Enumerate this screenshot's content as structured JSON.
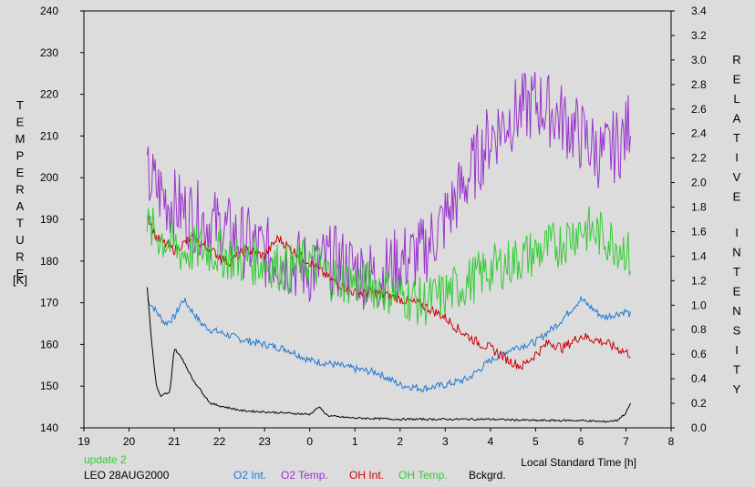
{
  "chart_data": {
    "type": "line",
    "xlabel": "Local Standard Time [h]",
    "ylabel_left": "TEMPERATURE",
    "ylabel_left_unit": "[K]",
    "ylabel_right": "RELATIVE INTENSITY",
    "x_tick_labels": [
      "19",
      "20",
      "21",
      "22",
      "23",
      "0",
      "1",
      "2",
      "3",
      "4",
      "5",
      "6",
      "7",
      "8"
    ],
    "xlim": [
      19,
      32
    ],
    "ylim_left": [
      140,
      240
    ],
    "ylim_right": [
      0.0,
      3.4
    ],
    "left_tick_labels": [
      "140",
      "150",
      "160",
      "170",
      "180",
      "190",
      "200",
      "210",
      "220",
      "230",
      "240"
    ],
    "right_tick_labels": [
      "0.0",
      "0.2",
      "0.4",
      "0.6",
      "0.8",
      "1.0",
      "1.2",
      "1.4",
      "1.6",
      "1.8",
      "2.0",
      "2.2",
      "2.4",
      "2.6",
      "2.8",
      "3.0",
      "3.2",
      "3.4"
    ],
    "grid": false,
    "legend_position": "bottom",
    "annotations": {
      "update": "update 2",
      "station": "LEO 28AUG2000"
    },
    "series": [
      {
        "name": "O2 Int.",
        "axis": "right",
        "color": "#1f78d4",
        "x": [
          20.4,
          20.6,
          20.8,
          21.0,
          21.2,
          21.4,
          21.6,
          21.8,
          22.0,
          22.5,
          23.0,
          23.5,
          24.0,
          24.5,
          25.0,
          25.5,
          26.0,
          26.5,
          27.0,
          27.5,
          28.0,
          28.5,
          29.0,
          29.5,
          30.0,
          30.5,
          31.0,
          31.1
        ],
        "y": [
          1.05,
          0.95,
          0.85,
          0.9,
          1.05,
          0.95,
          0.85,
          0.8,
          0.78,
          0.72,
          0.68,
          0.64,
          0.55,
          0.52,
          0.48,
          0.45,
          0.35,
          0.32,
          0.35,
          0.4,
          0.55,
          0.65,
          0.7,
          0.85,
          1.05,
          0.9,
          0.95,
          0.92
        ],
        "noise": 0.03
      },
      {
        "name": "O2 Temp.",
        "axis": "left",
        "color": "#9933cc",
        "x": [
          20.4,
          20.8,
          21.2,
          21.6,
          22.0,
          22.5,
          23.0,
          23.5,
          24.0,
          24.5,
          25.0,
          25.5,
          26.0,
          26.5,
          27.0,
          27.5,
          28.0,
          28.5,
          29.0,
          29.5,
          30.0,
          30.5,
          31.0,
          31.1
        ],
        "y": [
          200,
          195,
          192,
          190,
          188,
          185,
          182,
          180,
          178,
          180,
          178,
          176,
          180,
          182,
          190,
          200,
          210,
          215,
          218,
          215,
          210,
          205,
          210,
          215
        ],
        "noise": 9
      },
      {
        "name": "OH Int.",
        "axis": "right",
        "color": "#cc0000",
        "x": [
          20.4,
          20.6,
          21.0,
          21.4,
          21.8,
          22.2,
          22.6,
          23.0,
          23.3,
          23.6,
          24.0,
          24.5,
          25.0,
          25.5,
          26.0,
          26.5,
          27.0,
          27.3,
          27.7,
          28.0,
          28.4,
          28.7,
          29.0,
          29.3,
          29.6,
          30.0,
          30.5,
          31.1
        ],
        "y": [
          1.75,
          1.55,
          1.45,
          1.55,
          1.45,
          1.35,
          1.45,
          1.4,
          1.55,
          1.45,
          1.35,
          1.2,
          1.1,
          1.1,
          1.05,
          1.0,
          0.9,
          0.8,
          0.7,
          0.65,
          0.55,
          0.5,
          0.6,
          0.7,
          0.65,
          0.75,
          0.7,
          0.6
        ],
        "noise": 0.04
      },
      {
        "name": "OH Temp.",
        "axis": "left",
        "color": "#33cc33",
        "x": [
          20.4,
          20.8,
          21.2,
          21.6,
          22.0,
          22.5,
          23.0,
          23.5,
          24.0,
          24.5,
          25.0,
          25.5,
          26.0,
          26.5,
          27.0,
          27.5,
          28.0,
          28.5,
          29.0,
          29.5,
          30.0,
          30.5,
          31.0,
          31.1
        ],
        "y": [
          188,
          185,
          182,
          183,
          182,
          180,
          180,
          178,
          180,
          176,
          175,
          174,
          172,
          170,
          172,
          175,
          178,
          180,
          182,
          184,
          188,
          186,
          183,
          180
        ],
        "noise": 6
      },
      {
        "name": "Bckgrd.",
        "axis": "right",
        "color": "#000000",
        "x": [
          20.4,
          20.5,
          20.6,
          20.7,
          20.8,
          20.9,
          21.0,
          21.2,
          21.4,
          21.6,
          21.8,
          22.0,
          22.5,
          23.0,
          23.5,
          24.0,
          24.2,
          24.4,
          24.6,
          25.0,
          26.0,
          27.0,
          28.0,
          29.0,
          30.0,
          30.5,
          30.8,
          31.0,
          31.1
        ],
        "y": [
          1.15,
          0.7,
          0.35,
          0.25,
          0.28,
          0.28,
          0.65,
          0.55,
          0.4,
          0.3,
          0.2,
          0.18,
          0.14,
          0.13,
          0.12,
          0.11,
          0.17,
          0.1,
          0.09,
          0.08,
          0.07,
          0.07,
          0.07,
          0.06,
          0.06,
          0.05,
          0.06,
          0.12,
          0.2
        ],
        "noise": 0.008
      }
    ]
  }
}
